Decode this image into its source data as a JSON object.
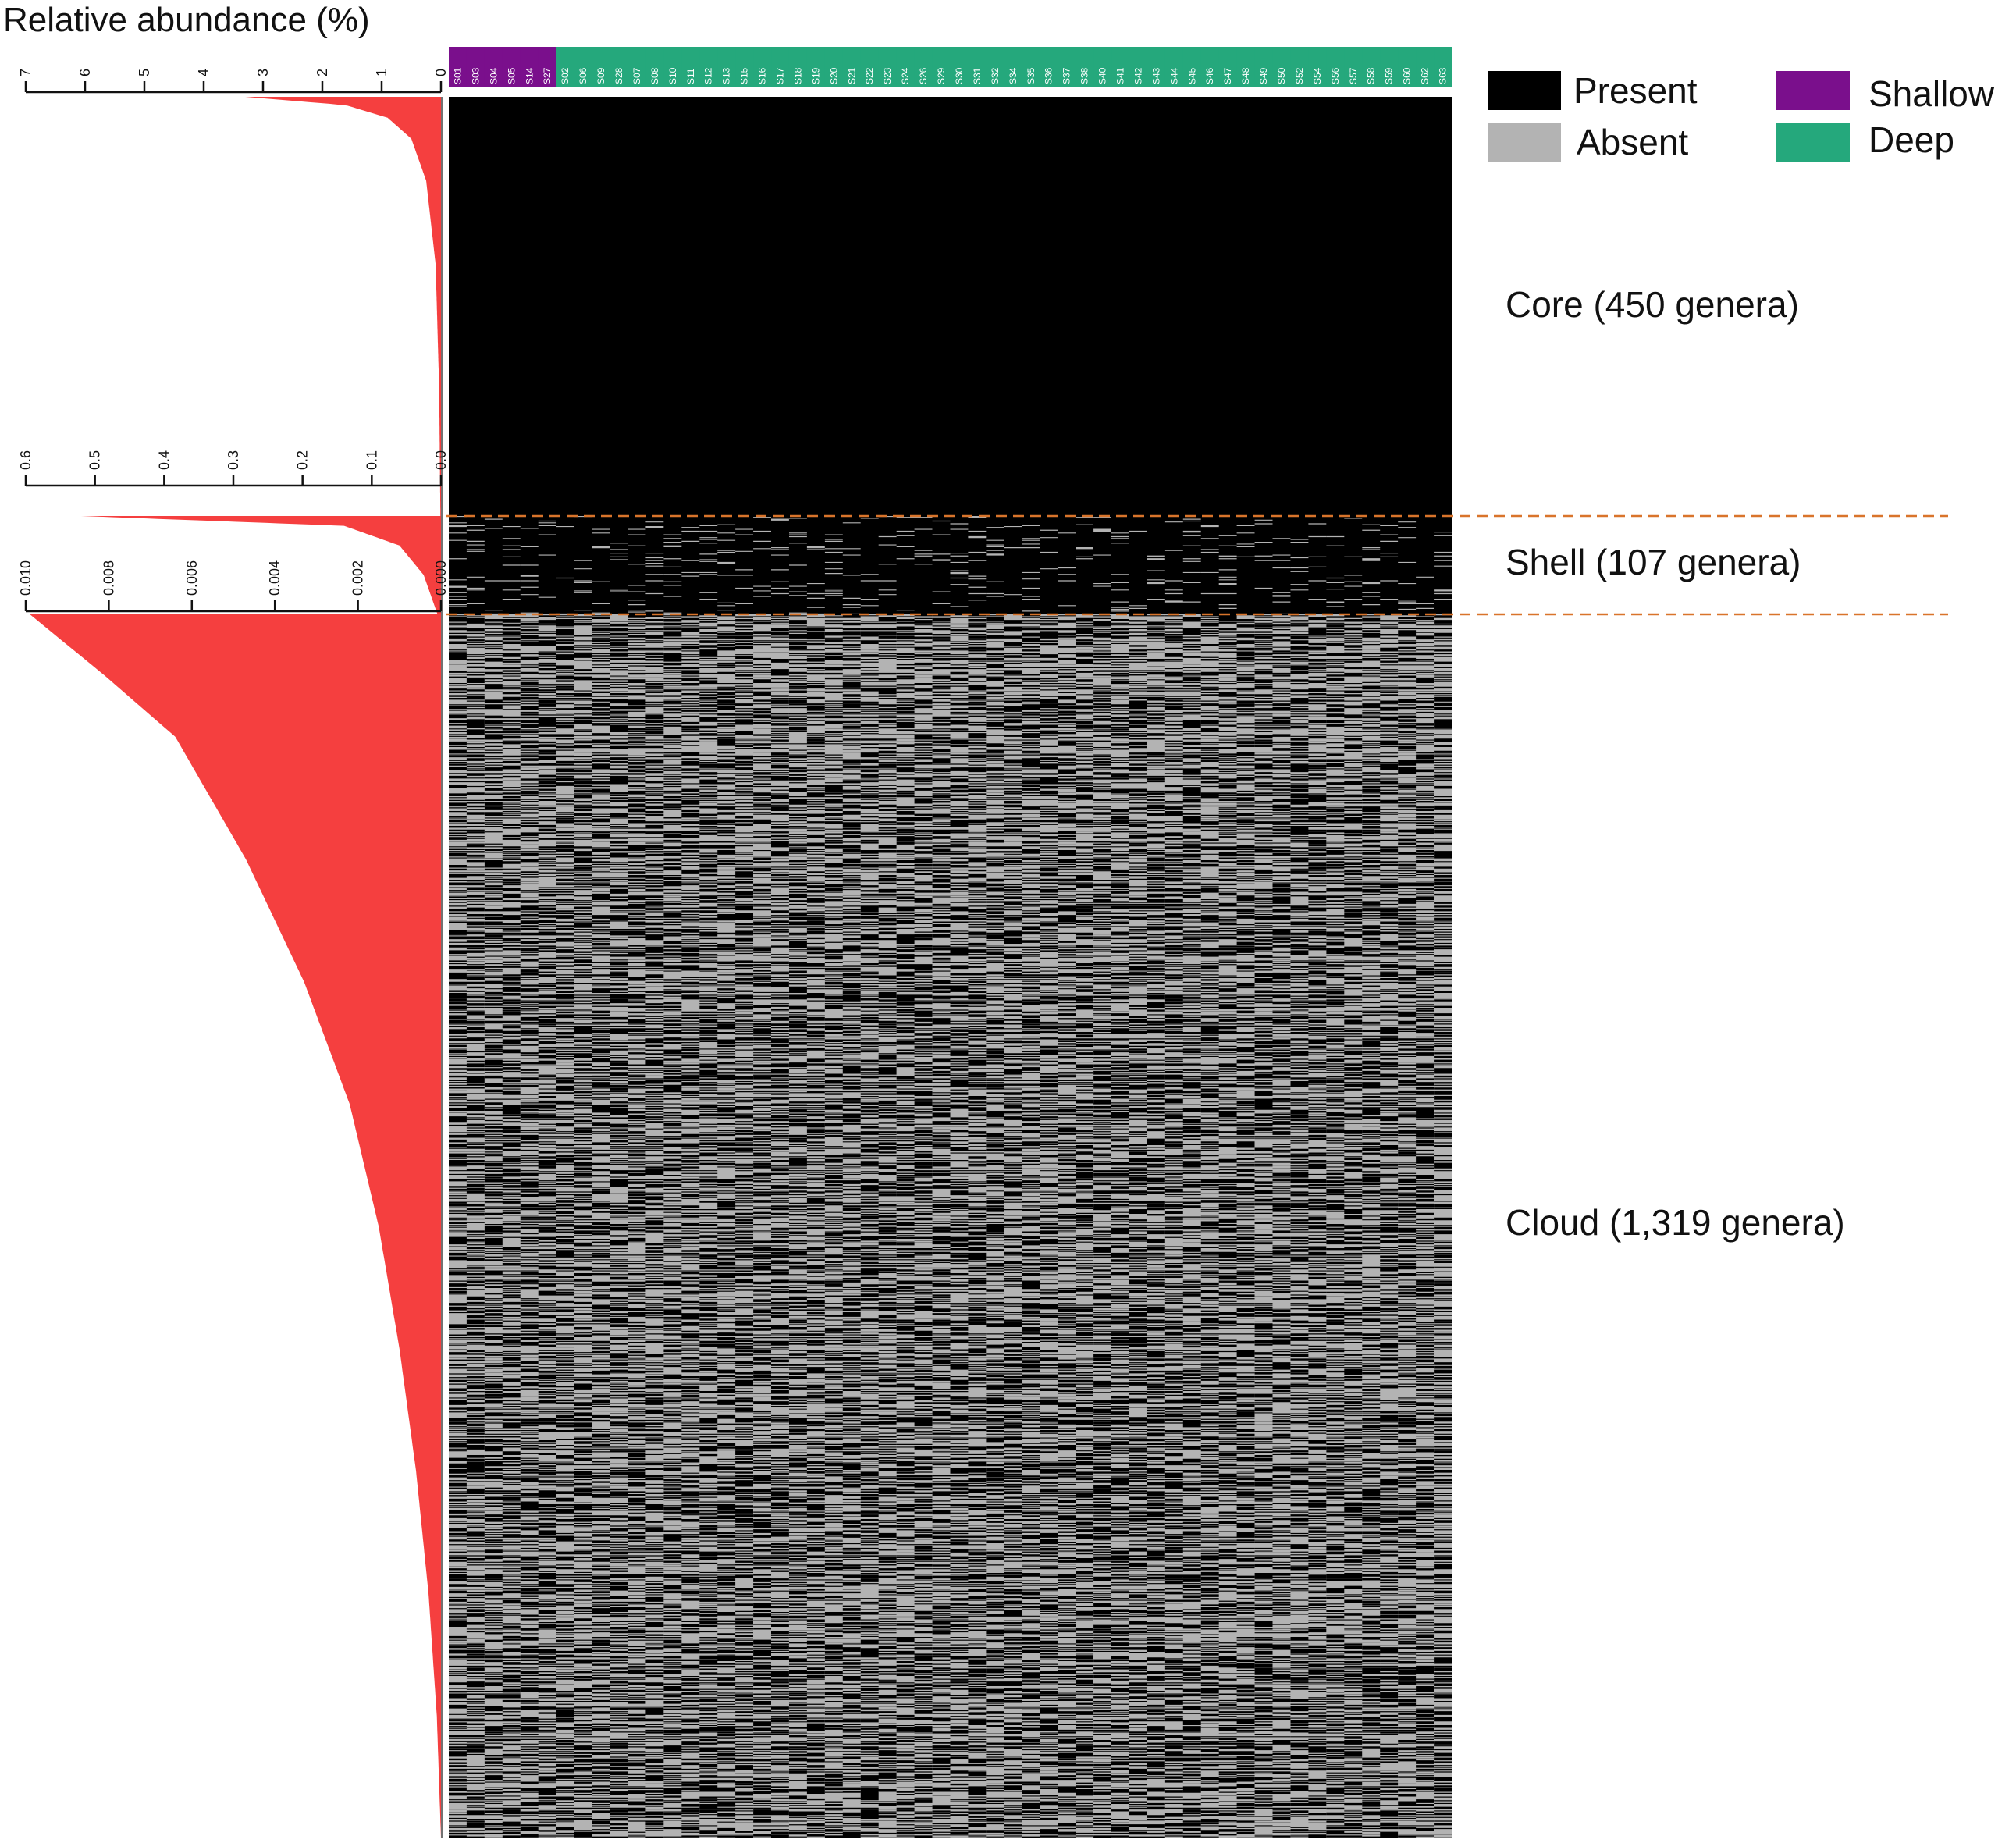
{
  "title": "Relative abundance (%)",
  "colors": {
    "present": "#000000",
    "absent": "#b3b3b3",
    "shallow": "#7a0f8c",
    "deep": "#25a87c",
    "abundance_bar": "#f53f3f",
    "boundary": "#d9742b"
  },
  "legend": {
    "present": "Present",
    "absent": "Absent",
    "shallow": "Shallow",
    "deep": "Deep"
  },
  "samples": {
    "shallow": [
      "S01",
      "S03",
      "S04",
      "S05",
      "S14",
      "S27"
    ],
    "deep": [
      "S02",
      "S06",
      "S09",
      "S28",
      "S07",
      "S08",
      "S10",
      "S11",
      "S12",
      "S13",
      "S15",
      "S16",
      "S17",
      "S18",
      "S19",
      "S20",
      "S21",
      "S22",
      "S23",
      "S24",
      "S26",
      "S29",
      "S30",
      "S31",
      "S32",
      "S34",
      "S35",
      "S36",
      "S37",
      "S38",
      "S40",
      "S41",
      "S42",
      "S43",
      "S44",
      "S45",
      "S46",
      "S47",
      "S48",
      "S49",
      "S50",
      "S52",
      "S54",
      "S56",
      "S57",
      "S58",
      "S59",
      "S60",
      "S62",
      "S63"
    ]
  },
  "groups": [
    {
      "name": "Core",
      "label": "Core (450 genera)",
      "genera": 450,
      "presence_rate": 1.0
    },
    {
      "name": "Shell",
      "label": "Shell (107 genera)",
      "genera": 107,
      "presence_rate": 0.93
    },
    {
      "name": "Cloud",
      "label": "Cloud (1,319 genera)",
      "genera": 1319,
      "presence_rate": 0.45
    }
  ],
  "chart_data": {
    "type": "heatmap",
    "title": "Relative abundance (%)",
    "axes": [
      {
        "panel": "Core",
        "ticks": [
          "7",
          "6",
          "5",
          "4",
          "3",
          "2",
          "1",
          "0"
        ],
        "range": [
          7,
          0
        ]
      },
      {
        "panel": "Shell",
        "ticks": [
          "0.6",
          "0.5",
          "0.4",
          "0.3",
          "0.2",
          "0.1",
          "0.0"
        ],
        "range": [
          0.6,
          0
        ]
      },
      {
        "panel": "Cloud",
        "ticks": [
          "0.010",
          "0.008",
          "0.006",
          "0.004",
          "0.002",
          "0.000"
        ],
        "range": [
          0.01,
          0
        ]
      }
    ],
    "abundance_profiles": {
      "Core": {
        "max": 7,
        "approx_curve": [
          [
            0.0,
            3.3
          ],
          [
            0.02,
            1.6
          ],
          [
            0.05,
            0.9
          ],
          [
            0.1,
            0.5
          ],
          [
            0.2,
            0.25
          ],
          [
            0.4,
            0.09
          ],
          [
            0.7,
            0.03
          ],
          [
            1.0,
            0.01
          ]
        ]
      },
      "Shell": {
        "max": 0.6,
        "approx_curve": [
          [
            0.0,
            0.52
          ],
          [
            0.1,
            0.14
          ],
          [
            0.3,
            0.06
          ],
          [
            0.6,
            0.025
          ],
          [
            1.0,
            0.005
          ]
        ]
      },
      "Cloud": {
        "max": 0.01,
        "approx_curve": [
          [
            0.0,
            0.0099
          ],
          [
            0.05,
            0.0081
          ],
          [
            0.1,
            0.0064
          ],
          [
            0.2,
            0.0047
          ],
          [
            0.3,
            0.0033
          ],
          [
            0.4,
            0.0022
          ],
          [
            0.5,
            0.0015
          ],
          [
            0.6,
            0.001
          ],
          [
            0.7,
            0.0006
          ],
          [
            0.8,
            0.0003
          ],
          [
            0.9,
            0.0001
          ],
          [
            1.0,
            0.0
          ]
        ]
      }
    },
    "legend": [
      "Present",
      "Absent",
      "Shallow",
      "Deep"
    ],
    "legend_position": "top-right"
  }
}
